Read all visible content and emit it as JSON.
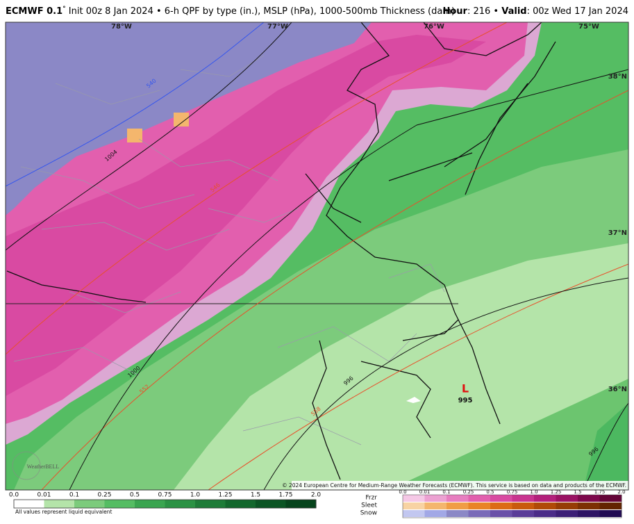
{
  "header": {
    "model": "ECMWF 0.1",
    "degree": "°",
    "description": " Init 00z 8 Jan 2024 • 6-h QPF by type (in.), MSLP (hPa), 1000-500mb Thickness (dam)",
    "hour_label": "Hour",
    "hour_value": ": 216 • ",
    "valid_label": "Valid",
    "valid_value": ": 00z Wed 17 Jan 2024"
  },
  "map": {
    "longitudes": [
      "78°W",
      "77°W",
      "76°W",
      "75°W"
    ],
    "latitudes": [
      "38°N",
      "37°N",
      "36°N"
    ],
    "contour_labels": [
      "540",
      "1004",
      "546",
      "1000",
      "552",
      "558",
      "996",
      "996"
    ],
    "low": {
      "symbol": "L",
      "pressure": "995"
    },
    "logo": "WeatherBELL",
    "copyright": "© 2024 European Centre for Medium-Range Weather Forecasts (ECMWF). This service is based on data and products of the ECMWF."
  },
  "legend": {
    "rain_ticks": [
      "0.0",
      "0.01",
      "0.1",
      "0.25",
      "0.5",
      "0.75",
      "1.0",
      "1.25",
      "1.5",
      "1.75",
      "2.0"
    ],
    "note": "All values represent liquid equivalent",
    "types": [
      "Frzr",
      "Sleet",
      "Snow"
    ],
    "mixed_ticks": [
      "0.0",
      "0.01",
      "0.1",
      "0.25",
      "0.5",
      "0.75",
      "1.0",
      "1.25",
      "1.5",
      "1.75",
      "2.0"
    ]
  }
}
